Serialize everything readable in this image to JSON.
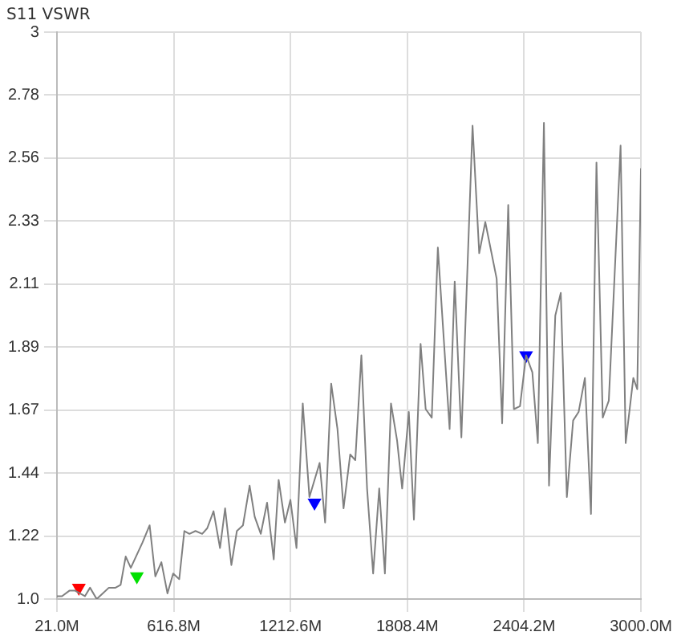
{
  "chart_data": {
    "type": "line",
    "title": "S11 VSWR",
    "grid": true,
    "legend": false,
    "marker": "none",
    "xlim": [
      21,
      3000
    ],
    "xticks": [
      {
        "value": 21,
        "label": "21.0M"
      },
      {
        "value": 616.8,
        "label": "616.8M"
      },
      {
        "value": 1212.6,
        "label": "1212.6M"
      },
      {
        "value": 1808.4,
        "label": "1808.4M"
      },
      {
        "value": 2404.2,
        "label": "2404.2M"
      },
      {
        "value": 3000,
        "label": "3000.0M"
      }
    ],
    "ylim": [
      1,
      3
    ],
    "yticks": [
      {
        "value": 1,
        "label": "1.0"
      },
      {
        "value": 1.2222,
        "label": "1.22"
      },
      {
        "value": 1.4444,
        "label": "1.44"
      },
      {
        "value": 1.6667,
        "label": "1.67"
      },
      {
        "value": 1.8889,
        "label": "1.89"
      },
      {
        "value": 2.1111,
        "label": "2.11"
      },
      {
        "value": 2.3333,
        "label": "2.33"
      },
      {
        "value": 2.5556,
        "label": "2.56"
      },
      {
        "value": 2.7778,
        "label": "2.78"
      },
      {
        "value": 3,
        "label": "3"
      }
    ],
    "series": [
      {
        "color": "#808080",
        "x": [
          21,
          47,
          86,
          112,
          164,
          190,
          224,
          255,
          286,
          320,
          346,
          372,
          398,
          458,
          494,
          523,
          554,
          585,
          614,
          645,
          671,
          697,
          728,
          762,
          788,
          820,
          853,
          879,
          911,
          939,
          970,
          1004,
          1030,
          1061,
          1093,
          1127,
          1152,
          1184,
          1212,
          1243,
          1275,
          1309,
          1361,
          1389,
          1420,
          1452,
          1483,
          1517,
          1543,
          1574,
          1603,
          1634,
          1665,
          1694,
          1725,
          1756,
          1782,
          1816,
          1842,
          1876,
          1902,
          1933,
          1964,
          2024,
          2050,
          2084,
          2141,
          2175,
          2206,
          2264,
          2292,
          2323,
          2352,
          2383,
          2414,
          2446,
          2474,
          2505,
          2531,
          2563,
          2591,
          2622,
          2654,
          2682,
          2714,
          2745,
          2773,
          2805,
          2836,
          2896,
          2922,
          2961,
          2981,
          3000
        ],
        "values": [
          1.01,
          1.01,
          1.03,
          1.03,
          1.01,
          1.04,
          1.0,
          1.02,
          1.04,
          1.04,
          1.05,
          1.15,
          1.11,
          1.2,
          1.26,
          1.08,
          1.13,
          1.02,
          1.09,
          1.07,
          1.24,
          1.23,
          1.24,
          1.23,
          1.25,
          1.31,
          1.18,
          1.32,
          1.12,
          1.24,
          1.26,
          1.4,
          1.29,
          1.23,
          1.34,
          1.14,
          1.42,
          1.27,
          1.35,
          1.18,
          1.69,
          1.36,
          1.48,
          1.27,
          1.76,
          1.6,
          1.32,
          1.51,
          1.49,
          1.86,
          1.39,
          1.09,
          1.39,
          1.09,
          1.69,
          1.56,
          1.39,
          1.66,
          1.28,
          1.9,
          1.67,
          1.64,
          2.24,
          1.6,
          2.12,
          1.57,
          2.67,
          2.22,
          2.33,
          2.13,
          1.62,
          2.39,
          1.67,
          1.68,
          1.86,
          1.8,
          1.55,
          2.68,
          1.4,
          2.0,
          2.08,
          1.36,
          1.63,
          1.66,
          1.78,
          1.3,
          2.54,
          1.64,
          1.7,
          2.6,
          1.55,
          1.78,
          1.74,
          2.52
        ]
      },
      {
        "type": "scatter",
        "marker": "triangle",
        "colors": [
          "#ff0000",
          "#00e000",
          "#0000ff",
          "#0000ff"
        ],
        "x": [
          133,
          429,
          1335,
          2414
        ],
        "values": [
          1.04,
          1.08,
          1.34,
          1.86
        ]
      }
    ]
  }
}
